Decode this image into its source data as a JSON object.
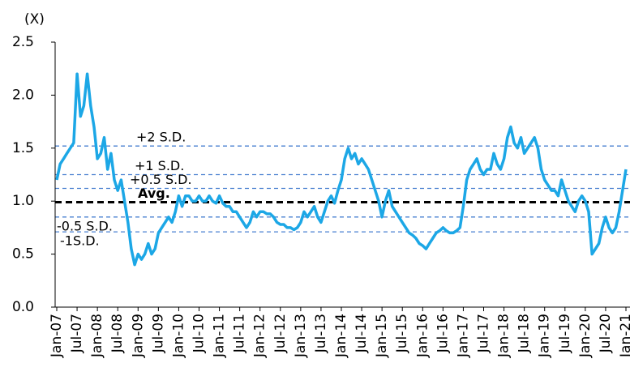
{
  "chart_data": {
    "type": "line",
    "y_unit_label": "(X)",
    "ylim": [
      0,
      2.5
    ],
    "yticks": [
      {
        "value": 0,
        "label": "0.0"
      },
      0.5,
      {
        "value": 1,
        "label": "1.0"
      },
      1.5,
      {
        "value": 2,
        "label": "2.0"
      },
      2.5
    ],
    "categories": [
      "Jan-07",
      null,
      null,
      null,
      null,
      null,
      "Jul-07",
      null,
      null,
      null,
      null,
      null,
      "Jan-08",
      null,
      null,
      null,
      null,
      null,
      "Jul-08",
      null,
      null,
      null,
      null,
      null,
      "Jan-09",
      null,
      null,
      null,
      null,
      null,
      "Jul-09",
      null,
      null,
      null,
      null,
      null,
      "Jan-10",
      null,
      null,
      null,
      null,
      null,
      "Jul-10",
      null,
      null,
      null,
      null,
      null,
      "Jan-11",
      null,
      null,
      null,
      null,
      null,
      "Jul-11",
      null,
      null,
      null,
      null,
      null,
      "Jan-12",
      null,
      null,
      null,
      null,
      null,
      "Jul-12",
      null,
      null,
      null,
      null,
      null,
      "Jan-13",
      null,
      null,
      null,
      null,
      null,
      "Jul-13",
      null,
      null,
      null,
      null,
      null,
      "Jan-14",
      null,
      null,
      null,
      null,
      null,
      "Jul-14",
      null,
      null,
      null,
      null,
      null,
      "Jan-15",
      null,
      null,
      null,
      null,
      null,
      "Jul-15",
      null,
      null,
      null,
      null,
      null,
      "Jan-16",
      null,
      null,
      null,
      null,
      null,
      "Jul-16",
      null,
      null,
      null,
      null,
      null,
      "Jan-17",
      null,
      null,
      null,
      null,
      null,
      "Jul-17",
      null,
      null,
      null,
      null,
      null,
      "Jan-18",
      null,
      null,
      null,
      null,
      null,
      "Jul-18",
      null,
      null,
      null,
      null,
      null,
      "Jan-19",
      null,
      null,
      null,
      null,
      null,
      "Jul-19",
      null,
      null,
      null,
      null,
      null,
      "Jan-20",
      null,
      null,
      null,
      null,
      null,
      "Jul-20",
      null,
      null,
      null,
      null,
      null,
      "Jan-21"
    ],
    "series": [
      {
        "color": "#1ca7e6",
        "values": [
          1.2,
          1.35,
          1.4,
          1.45,
          1.5,
          1.55,
          2.2,
          1.8,
          1.9,
          2.2,
          1.9,
          1.7,
          1.4,
          1.45,
          1.6,
          1.3,
          1.45,
          1.2,
          1.1,
          1.2,
          1.0,
          0.8,
          0.55,
          0.4,
          0.5,
          0.45,
          0.5,
          0.6,
          0.5,
          0.55,
          0.7,
          0.75,
          0.8,
          0.85,
          0.8,
          0.9,
          1.05,
          0.95,
          1.05,
          1.05,
          1.0,
          1.0,
          1.05,
          1.0,
          1.0,
          1.05,
          1.0,
          0.98,
          1.05,
          0.98,
          0.95,
          0.95,
          0.9,
          0.9,
          0.85,
          0.8,
          0.75,
          0.8,
          0.9,
          0.85,
          0.9,
          0.9,
          0.88,
          0.88,
          0.85,
          0.8,
          0.78,
          0.78,
          0.75,
          0.75,
          0.73,
          0.75,
          0.8,
          0.9,
          0.85,
          0.9,
          0.95,
          0.85,
          0.8,
          0.9,
          1.0,
          1.05,
          0.98,
          1.1,
          1.2,
          1.4,
          1.5,
          1.4,
          1.45,
          1.35,
          1.4,
          1.35,
          1.3,
          1.2,
          1.1,
          1.0,
          0.85,
          1.0,
          1.1,
          0.95,
          0.9,
          0.85,
          0.8,
          0.75,
          0.7,
          0.68,
          0.65,
          0.6,
          0.58,
          0.55,
          0.6,
          0.65,
          0.7,
          0.72,
          0.75,
          0.72,
          0.7,
          0.7,
          0.72,
          0.75,
          0.95,
          1.2,
          1.3,
          1.35,
          1.4,
          1.3,
          1.25,
          1.3,
          1.3,
          1.45,
          1.35,
          1.3,
          1.4,
          1.6,
          1.7,
          1.55,
          1.5,
          1.6,
          1.45,
          1.5,
          1.55,
          1.6,
          1.5,
          1.3,
          1.2,
          1.15,
          1.1,
          1.1,
          1.05,
          1.2,
          1.1,
          1.0,
          0.95,
          0.9,
          1.0,
          1.05,
          1.0,
          0.9,
          0.5,
          0.55,
          0.6,
          0.75,
          0.85,
          0.75,
          0.7,
          0.75,
          0.9,
          1.1,
          1.3
        ]
      }
    ],
    "reference_lines": [
      {
        "label": "+2 S.D.",
        "value": 1.52,
        "color": "#4a80d0"
      },
      {
        "label": "+1 S.D.",
        "value": 1.25,
        "color": "#4a80d0"
      },
      {
        "label": "+0.5 S.D.",
        "value": 1.12,
        "color": "#4a80d0"
      },
      {
        "label": "Avg.",
        "value": 0.99,
        "color": "#000000"
      },
      {
        "label": "-0.5 S.D.",
        "value": 0.85,
        "color": "#4a80d0"
      },
      {
        "label": "-1S.D.",
        "value": 0.71,
        "color": "#4a80d0"
      }
    ]
  }
}
